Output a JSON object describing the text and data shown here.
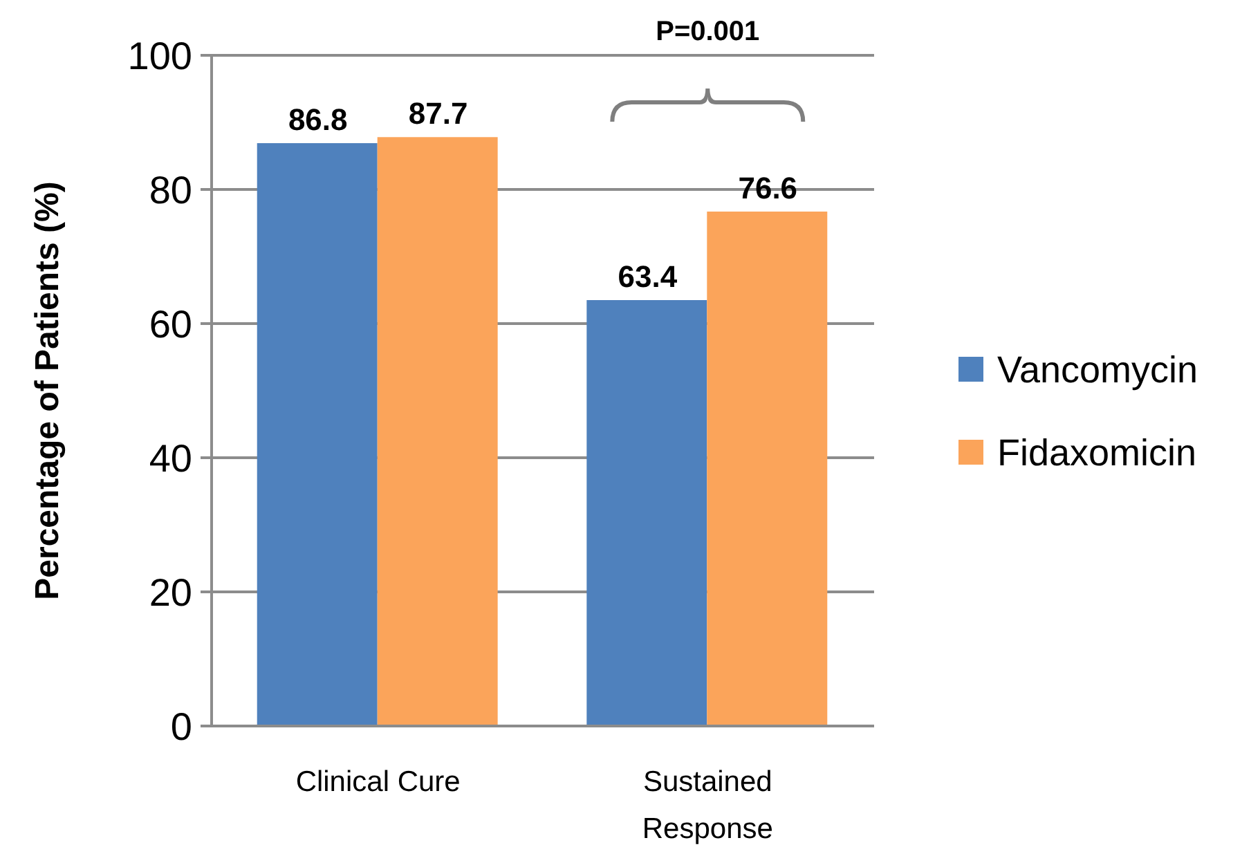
{
  "chart_data": {
    "type": "bar",
    "ylabel": "Percentage of Patients (%)",
    "categories": [
      "Clinical Cure",
      "Sustained Response"
    ],
    "series": [
      {
        "name": "Vancomycin",
        "color": "#4f81bd",
        "values": [
          86.8,
          63.4
        ]
      },
      {
        "name": "Fidaxomicin",
        "color": "#fba45a",
        "values": [
          87.7,
          76.6
        ]
      }
    ],
    "ylim": [
      0,
      100
    ],
    "yticks": [
      0,
      20,
      40,
      60,
      80,
      100
    ],
    "grid": "y",
    "legend": "right",
    "data_labels": true,
    "annotations": [
      "P=0.001"
    ]
  }
}
